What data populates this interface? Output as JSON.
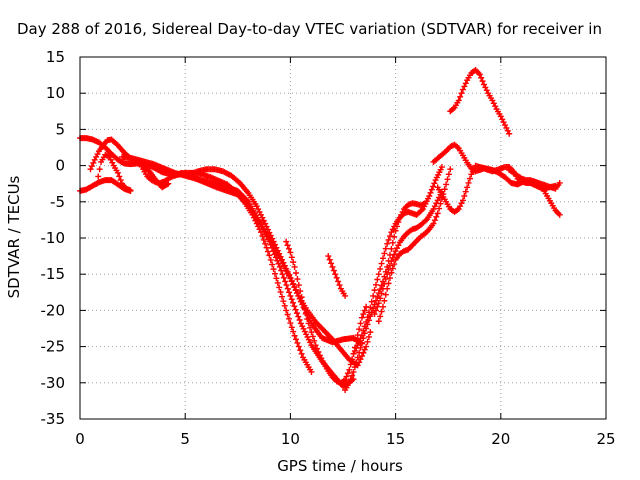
{
  "chart_data": {
    "type": "scatter",
    "title": "Day 288 of 2016, Sidereal Day-to-day VTEC variation (SDTVAR) for receiver in",
    "xlabel": "GPS time / hours",
    "ylabel": "SDTVAR / TECUs",
    "xlim": [
      0,
      25
    ],
    "ylim": [
      -35,
      15
    ],
    "xticks": [
      0,
      5,
      10,
      15,
      20,
      25
    ],
    "yticks": [
      15,
      10,
      5,
      0,
      -5,
      -10,
      -15,
      -20,
      -25,
      -30,
      -35
    ],
    "xtick_labels": [
      "0",
      "5",
      "10",
      "15",
      "20",
      "25"
    ],
    "ytick_labels": [
      "15",
      "10",
      "5",
      "0",
      "-5",
      "-10",
      "-15",
      "-20",
      "-25",
      "-30",
      "-35"
    ],
    "grid": true,
    "marker": "+",
    "series_color": "#ff0000",
    "series": [
      {
        "x": [
          0.0,
          0.3,
          0.6,
          0.9,
          1.2,
          1.5,
          1.8,
          2.1,
          2.4,
          2.7,
          3.0,
          3.3,
          3.6,
          3.9,
          4.2,
          4.6,
          5.0,
          5.4,
          5.8,
          6.2,
          6.6,
          7.0,
          7.4,
          7.8,
          8.2,
          8.6,
          9.0,
          9.4,
          9.8,
          10.2,
          10.6,
          11.0
        ],
        "y": [
          3.8,
          3.8,
          3.6,
          3.2,
          2.5,
          1.6,
          0.8,
          0.3,
          0.2,
          0.3,
          0.2,
          0.0,
          -0.4,
          -0.9,
          -1.1,
          -1.2,
          -1.0,
          -1.0,
          -1.2,
          -1.6,
          -2.1,
          -2.6,
          -3.6,
          -5.0,
          -6.8,
          -9.2,
          -12.4,
          -16.2,
          -20.0,
          -23.5,
          -26.5,
          -28.5
        ]
      },
      {
        "x": [
          0.0,
          0.3,
          0.6,
          0.9,
          1.2,
          1.5,
          1.8,
          2.1,
          2.4
        ],
        "y": [
          -3.5,
          -3.3,
          -2.8,
          -2.3,
          -2.0,
          -2.0,
          -2.6,
          -3.2,
          -3.5
        ]
      },
      {
        "x": [
          0.5,
          0.7,
          0.9,
          1.1,
          1.3,
          1.5,
          1.8,
          2.1,
          2.4,
          2.7,
          3.0,
          3.3,
          3.6,
          3.9,
          4.2
        ],
        "y": [
          -0.5,
          0.8,
          2.0,
          2.8,
          3.5,
          3.6,
          2.8,
          1.8,
          1.0,
          0.6,
          0.0,
          -0.8,
          -2.0,
          -3.0,
          -2.5
        ]
      },
      {
        "x": [
          0.8,
          1.0,
          1.2,
          1.4,
          1.6,
          1.8,
          2.0,
          2.2,
          2.4
        ],
        "y": [
          -2.5,
          0.5,
          1.5,
          1.2,
          0.0,
          -1.0,
          -2.5,
          -3.2,
          -3.4
        ]
      },
      {
        "x": [
          2.0,
          2.5,
          3.0,
          3.5,
          4.0,
          4.5,
          5.0,
          5.5,
          6.0,
          6.5,
          7.0,
          7.5,
          8.0,
          8.5,
          9.0,
          9.5,
          10.0,
          10.5,
          11.0,
          11.5,
          12.0,
          12.5,
          13.0,
          13.4
        ],
        "y": [
          1.2,
          1.0,
          0.6,
          0.2,
          -0.4,
          -1.0,
          -1.4,
          -1.8,
          -2.2,
          -2.6,
          -3.0,
          -3.5,
          -5.0,
          -7.5,
          -10.0,
          -12.8,
          -15.6,
          -18.8,
          -21.8,
          -23.8,
          -24.4,
          -24.0,
          -23.8,
          -24.6
        ]
      },
      {
        "x": [
          2.8,
          3.0,
          3.2,
          3.4,
          3.6,
          3.8,
          4.0,
          4.2,
          4.4,
          4.6,
          4.8,
          5.0,
          5.5,
          6.0,
          6.5,
          7.0,
          7.5,
          8.0,
          8.5,
          9.0,
          9.5,
          10.0,
          10.5,
          11.0,
          11.5,
          12.0,
          12.5,
          13.0
        ],
        "y": [
          0.5,
          -0.5,
          -1.5,
          -2.0,
          -2.3,
          -2.4,
          -2.2,
          -1.8,
          -1.5,
          -1.3,
          -1.2,
          -1.2,
          -1.8,
          -2.4,
          -3.0,
          -3.5,
          -4.0,
          -5.5,
          -7.8,
          -10.5,
          -14.0,
          -18.0,
          -21.8,
          -24.8,
          -27.0,
          -28.8,
          -30.5,
          -29.5
        ]
      },
      {
        "x": [
          4.8,
          5.2,
          5.6,
          6.0,
          6.4,
          6.8,
          7.2,
          7.6,
          8.0,
          8.4,
          8.8,
          9.2,
          9.6,
          10.0,
          10.4,
          10.8,
          11.2,
          11.6,
          12.0,
          12.4,
          12.8,
          13.2,
          13.6,
          13.8
        ],
        "y": [
          -1.0,
          -1.2,
          -0.8,
          -0.5,
          -0.5,
          -0.8,
          -1.4,
          -2.4,
          -3.8,
          -5.6,
          -8.0,
          -10.5,
          -13.0,
          -15.5,
          -18.0,
          -20.0,
          -21.6,
          -22.8,
          -24.0,
          -25.4,
          -26.8,
          -27.6,
          -25.0,
          -23.0
        ]
      },
      {
        "x": [
          9.8,
          10.0,
          10.2,
          10.4,
          10.6,
          10.8,
          11.0,
          11.2,
          11.4,
          11.6,
          11.8,
          12.0,
          12.2,
          12.4,
          12.6,
          12.8,
          13.0,
          13.2,
          13.4,
          13.6
        ],
        "y": [
          -10.5,
          -12.0,
          -14.0,
          -16.5,
          -19.0,
          -21.2,
          -23.0,
          -24.8,
          -26.2,
          -27.4,
          -28.4,
          -29.2,
          -29.8,
          -30.0,
          -29.6,
          -28.2,
          -26.0,
          -23.4,
          -21.0,
          -19.5
        ]
      },
      {
        "x": [
          11.8,
          12.0,
          12.2,
          12.4,
          12.6
        ],
        "y": [
          -12.5,
          -14.0,
          -15.5,
          -17.0,
          -18.0
        ]
      },
      {
        "x": [
          12.6,
          12.8,
          13.0,
          13.2,
          13.4,
          13.6,
          13.8,
          14.0,
          14.2,
          14.4,
          14.6,
          14.8,
          15.0,
          15.2,
          15.4,
          15.6,
          15.8,
          16.0,
          16.2,
          16.4
        ],
        "y": [
          -31.0,
          -30.0,
          -28.5,
          -26.5,
          -24.5,
          -22.5,
          -20.8,
          -19.2,
          -17.6,
          -16.0,
          -14.0,
          -11.5,
          -9.0,
          -7.2,
          -6.0,
          -5.4,
          -5.2,
          -5.3,
          -5.5,
          -5.2
        ]
      },
      {
        "x": [
          13.0,
          13.2,
          13.4,
          13.6,
          13.8,
          14.0,
          14.2,
          14.4,
          14.6,
          14.8,
          15.0,
          15.2,
          15.4,
          15.6,
          15.8,
          16.0,
          16.3,
          16.6,
          16.9,
          17.2
        ],
        "y": [
          -26.0,
          -24.8,
          -23.4,
          -21.6,
          -19.6,
          -17.2,
          -15.0,
          -12.8,
          -10.8,
          -9.2,
          -8.0,
          -7.2,
          -6.6,
          -6.4,
          -6.6,
          -6.8,
          -6.0,
          -4.2,
          -2.0,
          -0.2
        ]
      },
      {
        "x": [
          14.0,
          14.2,
          14.4,
          14.6,
          14.8,
          15.0,
          15.2,
          15.4,
          15.6,
          15.8,
          16.0,
          16.2,
          16.5,
          16.8,
          17.0,
          17.2
        ],
        "y": [
          -20.5,
          -19.0,
          -17.0,
          -15.0,
          -13.2,
          -11.8,
          -10.6,
          -9.8,
          -9.2,
          -8.8,
          -8.6,
          -8.2,
          -7.4,
          -6.0,
          -4.8,
          -3.6
        ]
      },
      {
        "x": [
          14.2,
          14.4,
          14.6,
          14.8,
          15.0,
          15.2,
          15.4,
          15.6,
          15.8,
          16.0,
          16.2,
          16.4,
          16.6,
          16.8,
          17.0,
          17.2,
          17.4,
          17.6
        ],
        "y": [
          -21.5,
          -19.5,
          -17.0,
          -14.8,
          -13.0,
          -12.2,
          -11.8,
          -11.6,
          -11.0,
          -10.4,
          -9.8,
          -9.4,
          -8.8,
          -8.0,
          -6.6,
          -4.6,
          -2.6,
          -0.5
        ]
      },
      {
        "x": [
          16.8,
          17.0,
          17.2,
          17.4,
          17.6,
          17.8,
          18.0,
          18.2,
          18.4,
          18.6,
          18.8,
          19.0,
          19.2,
          19.4,
          19.6,
          19.8,
          20.0,
          20.2,
          20.4,
          20.6,
          20.8,
          21.0,
          21.2,
          21.4,
          21.6,
          21.8,
          22.0,
          22.2,
          22.4,
          22.6,
          22.8
        ],
        "y": [
          0.5,
          1.0,
          1.5,
          2.0,
          2.6,
          2.9,
          2.4,
          1.4,
          0.4,
          -0.4,
          -0.8,
          -0.6,
          -0.4,
          -0.6,
          -0.8,
          -0.6,
          -0.4,
          -0.2,
          -0.2,
          -0.8,
          -1.8,
          -2.2,
          -2.4,
          -2.4,
          -2.2,
          -2.4,
          -2.6,
          -2.8,
          -3.0,
          -3.2,
          -2.4
        ]
      },
      {
        "x": [
          17.0,
          17.2,
          17.4,
          17.6,
          17.8,
          18.0,
          18.2,
          18.4,
          18.6,
          18.8,
          19.0,
          19.3,
          19.6,
          19.9,
          20.2,
          20.5,
          20.8,
          21.1,
          21.4,
          21.7,
          22.0,
          22.3,
          22.6
        ],
        "y": [
          -3.0,
          -4.0,
          -5.0,
          -6.0,
          -6.4,
          -6.0,
          -4.8,
          -3.0,
          -1.2,
          0.0,
          -0.2,
          -0.4,
          -0.6,
          -1.0,
          -1.6,
          -2.4,
          -2.6,
          -2.2,
          -2.4,
          -2.8,
          -3.2,
          -3.0,
          -2.8
        ]
      },
      {
        "x": [
          17.6,
          17.8,
          18.0,
          18.2,
          18.4,
          18.6,
          18.8,
          19.0,
          19.2,
          19.4,
          19.6,
          19.8,
          20.0,
          20.2,
          20.4
        ],
        "y": [
          7.5,
          8.0,
          9.0,
          10.5,
          11.8,
          12.8,
          13.2,
          12.6,
          11.2,
          10.0,
          9.0,
          7.8,
          6.8,
          5.6,
          4.4
        ]
      },
      {
        "x": [
          20.4,
          20.6,
          20.8,
          21.0,
          21.2,
          21.4,
          21.6,
          21.8,
          22.0,
          22.2,
          22.4,
          22.6,
          22.8
        ],
        "y": [
          -0.6,
          -1.0,
          -1.4,
          -1.8,
          -2.0,
          -2.0,
          -2.2,
          -2.6,
          -3.2,
          -4.2,
          -5.2,
          -6.2,
          -6.8
        ]
      }
    ]
  }
}
